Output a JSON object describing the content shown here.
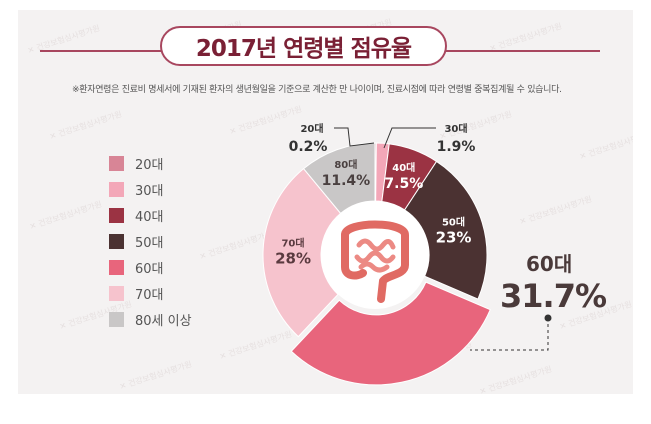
{
  "title": "2017년 연령별 점유율",
  "note": "※환자연령은 진료비 명세서에 기재된 환자의 생년월일을 기준으로 계산한 만 나이이며, 진료시점에 따라 연령별 중복집계될 수 있습니다.",
  "watermark_text": "건강보험심사평가원",
  "legend": [
    {
      "label": "20대",
      "color": "#d88596"
    },
    {
      "label": "30대",
      "color": "#f3a7b8"
    },
    {
      "label": "40대",
      "color": "#9b3343"
    },
    {
      "label": "50대",
      "color": "#4b3232"
    },
    {
      "label": "60대",
      "color": "#e8657c"
    },
    {
      "label": "70대",
      "color": "#f6c3cd"
    },
    {
      "label": "80세 이상",
      "color": "#c9c7c7"
    }
  ],
  "chart_data": {
    "type": "pie",
    "title": "2017년 연령별 점유율",
    "slices": [
      {
        "category": "20대",
        "label": "0.2%",
        "value": 0.2,
        "color": "#d88596"
      },
      {
        "category": "30대",
        "label": "1.9%",
        "value": 1.9,
        "color": "#f3a7b8"
      },
      {
        "category": "40대",
        "label": "7.5%",
        "value": 7.5,
        "color": "#9b3343"
      },
      {
        "category": "50대",
        "label": "23%",
        "value": 23,
        "color": "#4b3232"
      },
      {
        "category": "60대",
        "label": "31.7%",
        "value": 31.7,
        "color": "#e8657c"
      },
      {
        "category": "70대",
        "label": "28%",
        "value": 28,
        "color": "#f6c3cd"
      },
      {
        "category": "80대",
        "label": "11.4%",
        "value": 11.4,
        "color": "#c9c7c7"
      }
    ],
    "highlight": "60대",
    "center_icon": "intestine-icon"
  },
  "accent_color": "#a8475f"
}
